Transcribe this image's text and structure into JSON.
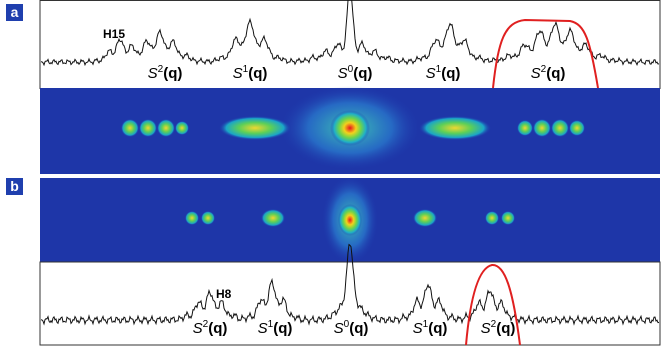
{
  "panels": [
    {
      "label": "a",
      "peak_label": "H15",
      "orders": [
        {
          "symbol": "S",
          "order": "2",
          "argument": "(q)"
        },
        {
          "symbol": "S",
          "order": "1",
          "argument": "(q)"
        },
        {
          "symbol": "S",
          "order": "0",
          "argument": "(q)"
        },
        {
          "symbol": "S",
          "order": "1",
          "argument": "(q)"
        },
        {
          "symbol": "S",
          "order": "2",
          "argument": "(q)"
        }
      ]
    },
    {
      "label": "b",
      "peak_label": "H8",
      "orders": [
        {
          "symbol": "S",
          "order": "2",
          "argument": "(q)"
        },
        {
          "symbol": "S",
          "order": "1",
          "argument": "(q)"
        },
        {
          "symbol": "S",
          "order": "0",
          "argument": "(q)"
        },
        {
          "symbol": "S",
          "order": "1",
          "argument": "(q)"
        },
        {
          "symbol": "S",
          "order": "2",
          "argument": "(q)"
        }
      ]
    }
  ]
}
